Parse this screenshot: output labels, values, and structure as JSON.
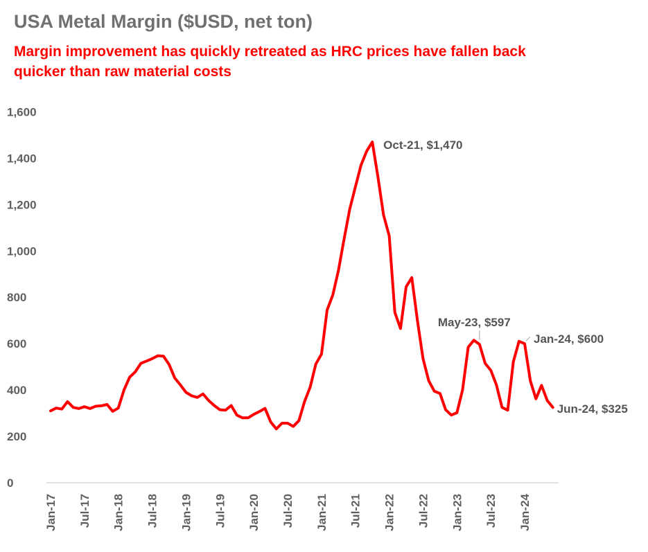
{
  "title": "USA Metal Margin ($USD, net ton)",
  "subtitle": "Margin improvement has quickly retreated as HRC prices have fallen back quicker than raw material costs",
  "colors": {
    "line": "#ff0000",
    "title": "#707070",
    "subtitle": "#ff0000",
    "axis_text": "#5f5f5f",
    "axis_line": "#d9d9d9"
  },
  "chart_data": {
    "type": "line",
    "title": "USA Metal Margin ($USD, net ton)",
    "subtitle": "Margin improvement has quickly retreated as HRC prices have fallen back quicker than raw material costs",
    "ylim": [
      0,
      1600
    ],
    "y_ticks": [
      "0",
      "200",
      "400",
      "600",
      "800",
      "1,000",
      "1,200",
      "1,400",
      "1,600"
    ],
    "y_tick_values": [
      0,
      200,
      400,
      600,
      800,
      1000,
      1200,
      1400,
      1600
    ],
    "x_tick_labels": [
      "Jan-17",
      "Jul-17",
      "Jan-18",
      "Jul-18",
      "Jan-19",
      "Jul-19",
      "Jan-20",
      "Jul-20",
      "Jan-21",
      "Jul-21",
      "Jan-22",
      "Jul-22",
      "Jan-23",
      "Jul-23",
      "Jan-24"
    ],
    "grid": false,
    "legend": "none",
    "series": [
      {
        "start": "Jan-17",
        "frequency": "monthly",
        "values": [
          310,
          322,
          318,
          350,
          325,
          320,
          328,
          320,
          330,
          332,
          338,
          308,
          322,
          400,
          455,
          478,
          515,
          525,
          535,
          548,
          546,
          510,
          452,
          422,
          390,
          375,
          368,
          383,
          355,
          333,
          315,
          313,
          333,
          292,
          280,
          280,
          295,
          307,
          321,
          262,
          232,
          257,
          257,
          243,
          268,
          350,
          413,
          512,
          555,
          745,
          810,
          915,
          1050,
          1180,
          1275,
          1370,
          1430,
          1470,
          1320,
          1155,
          1065,
          735,
          665,
          845,
          885,
          700,
          535,
          440,
          395,
          385,
          315,
          292,
          302,
          400,
          585,
          615,
          597,
          515,
          485,
          422,
          325,
          313,
          522,
          610,
          600,
          440,
          362,
          420,
          355,
          325
        ]
      }
    ],
    "annotations": [
      {
        "label": "Oct-21,  $1,470",
        "x": "Oct-21",
        "y": 1470
      },
      {
        "label": "May-23,  $597",
        "x": "May-23",
        "y": 597
      },
      {
        "label": "Jan-24,  $600",
        "x": "Jan-24",
        "y": 600
      },
      {
        "label": "Jun-24,  $325",
        "x": "Jun-24",
        "y": 325
      }
    ]
  }
}
